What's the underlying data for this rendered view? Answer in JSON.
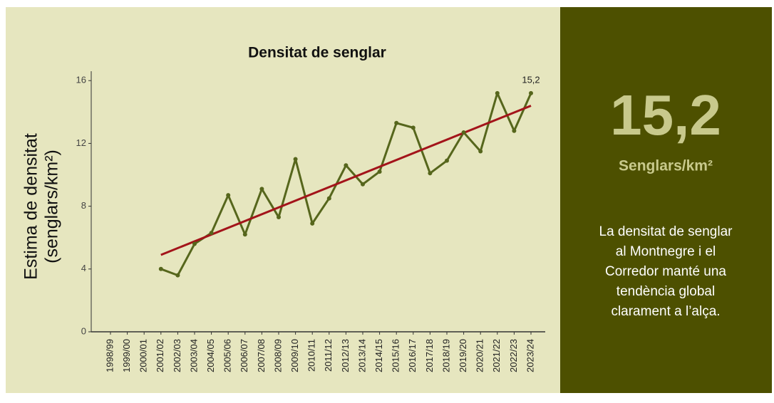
{
  "chart_data": {
    "type": "line",
    "title": "Densitat de senglar",
    "ylabel": [
      "Estima de densitat",
      "(senglars/km²)"
    ],
    "categories": [
      "1998/99",
      "1999/00",
      "2000/01",
      "2001/02",
      "2002/03",
      "2003/04",
      "2004/05",
      "2005/06",
      "2006/07",
      "2007/08",
      "2008/09",
      "2009/10",
      "2010/11",
      "2011/12",
      "2012/13",
      "2013/14",
      "2014/15",
      "2015/16",
      "2016/17",
      "2017/18",
      "2018/19",
      "2019/20",
      "2020/21",
      "2021/22",
      "2022/23",
      "2023/24"
    ],
    "series": [
      {
        "color": "#56661c",
        "values": [
          null,
          null,
          null,
          4.0,
          3.6,
          5.6,
          6.3,
          8.7,
          6.2,
          9.1,
          7.3,
          11.0,
          6.9,
          8.5,
          10.6,
          9.4,
          10.2,
          13.3,
          13.0,
          10.1,
          10.9,
          12.7,
          11.5,
          15.2,
          12.8,
          15.2
        ],
        "value_labels": [
          null,
          null,
          null,
          null,
          null,
          null,
          null,
          null,
          null,
          null,
          null,
          null,
          null,
          null,
          null,
          null,
          null,
          null,
          null,
          null,
          null,
          null,
          null,
          null,
          null,
          "15,2"
        ]
      }
    ],
    "trend": {
      "color": "#a3141a",
      "start": 4.9,
      "end": 14.4
    },
    "ylim": [
      0,
      16.6
    ],
    "yticks": [
      0,
      4,
      8,
      12,
      16
    ]
  },
  "panel": {
    "value": "15,2",
    "unit": "Senglars/km²",
    "text": [
      "La densitat de senglar",
      "al Montnegre i el",
      "Corredor manté una",
      "tendència global",
      "clarament a l’alça."
    ]
  }
}
